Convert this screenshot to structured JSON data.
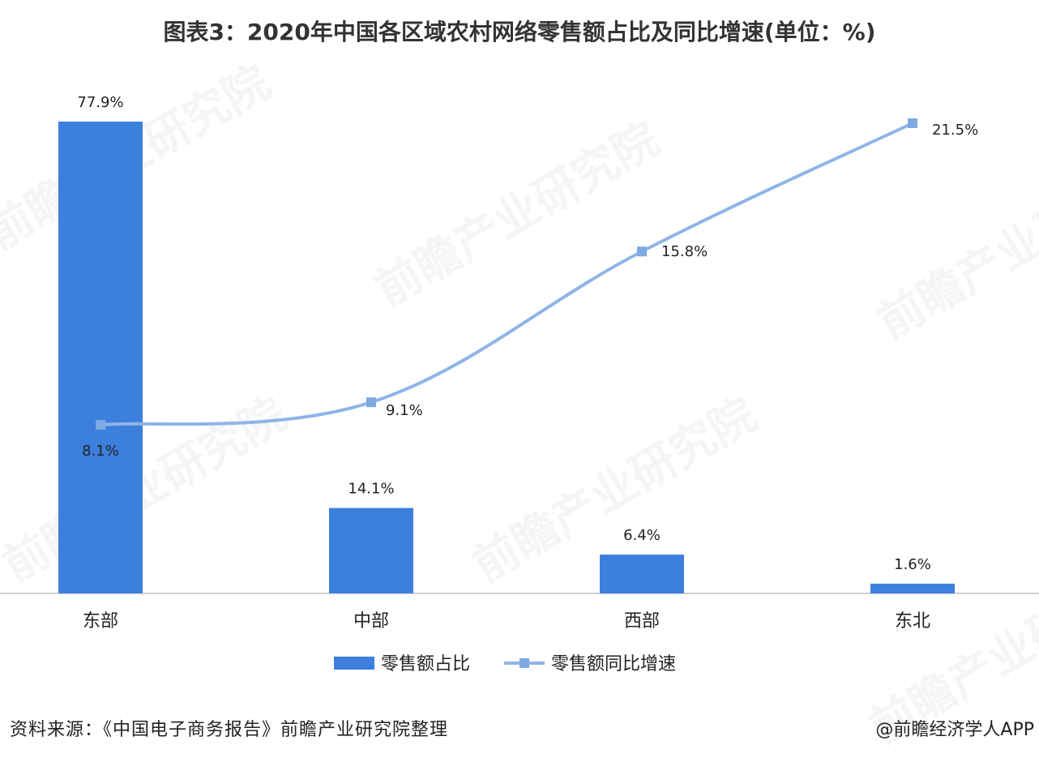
{
  "title": "图表3：2020年中国各区域农村网络零售额占比及同比增速(单位：%)",
  "watermark": "前瞻产业研究院",
  "source": "资料来源：《中国电子商务报告》前瞻产业研究院整理",
  "credit": "@前瞻经济学人APP",
  "colors": {
    "bar": "#3c7fdc",
    "line": "#8fb4e8",
    "marker": "#7fa9e3"
  },
  "chart_data": {
    "type": "bar",
    "categories": [
      "东部",
      "中部",
      "西部",
      "东北"
    ],
    "series": [
      {
        "name": "零售额占比",
        "type": "bar",
        "values": [
          77.9,
          14.1,
          6.4,
          1.6
        ],
        "labels": [
          "77.9%",
          "14.1%",
          "6.4%",
          "1.6%"
        ]
      },
      {
        "name": "零售额同比增速",
        "type": "line",
        "values": [
          8.1,
          9.1,
          15.8,
          21.5
        ],
        "labels": [
          "8.1%",
          "9.1%",
          "15.8%",
          "21.5%"
        ]
      }
    ],
    "legend": "bottom-center",
    "grid": false
  }
}
